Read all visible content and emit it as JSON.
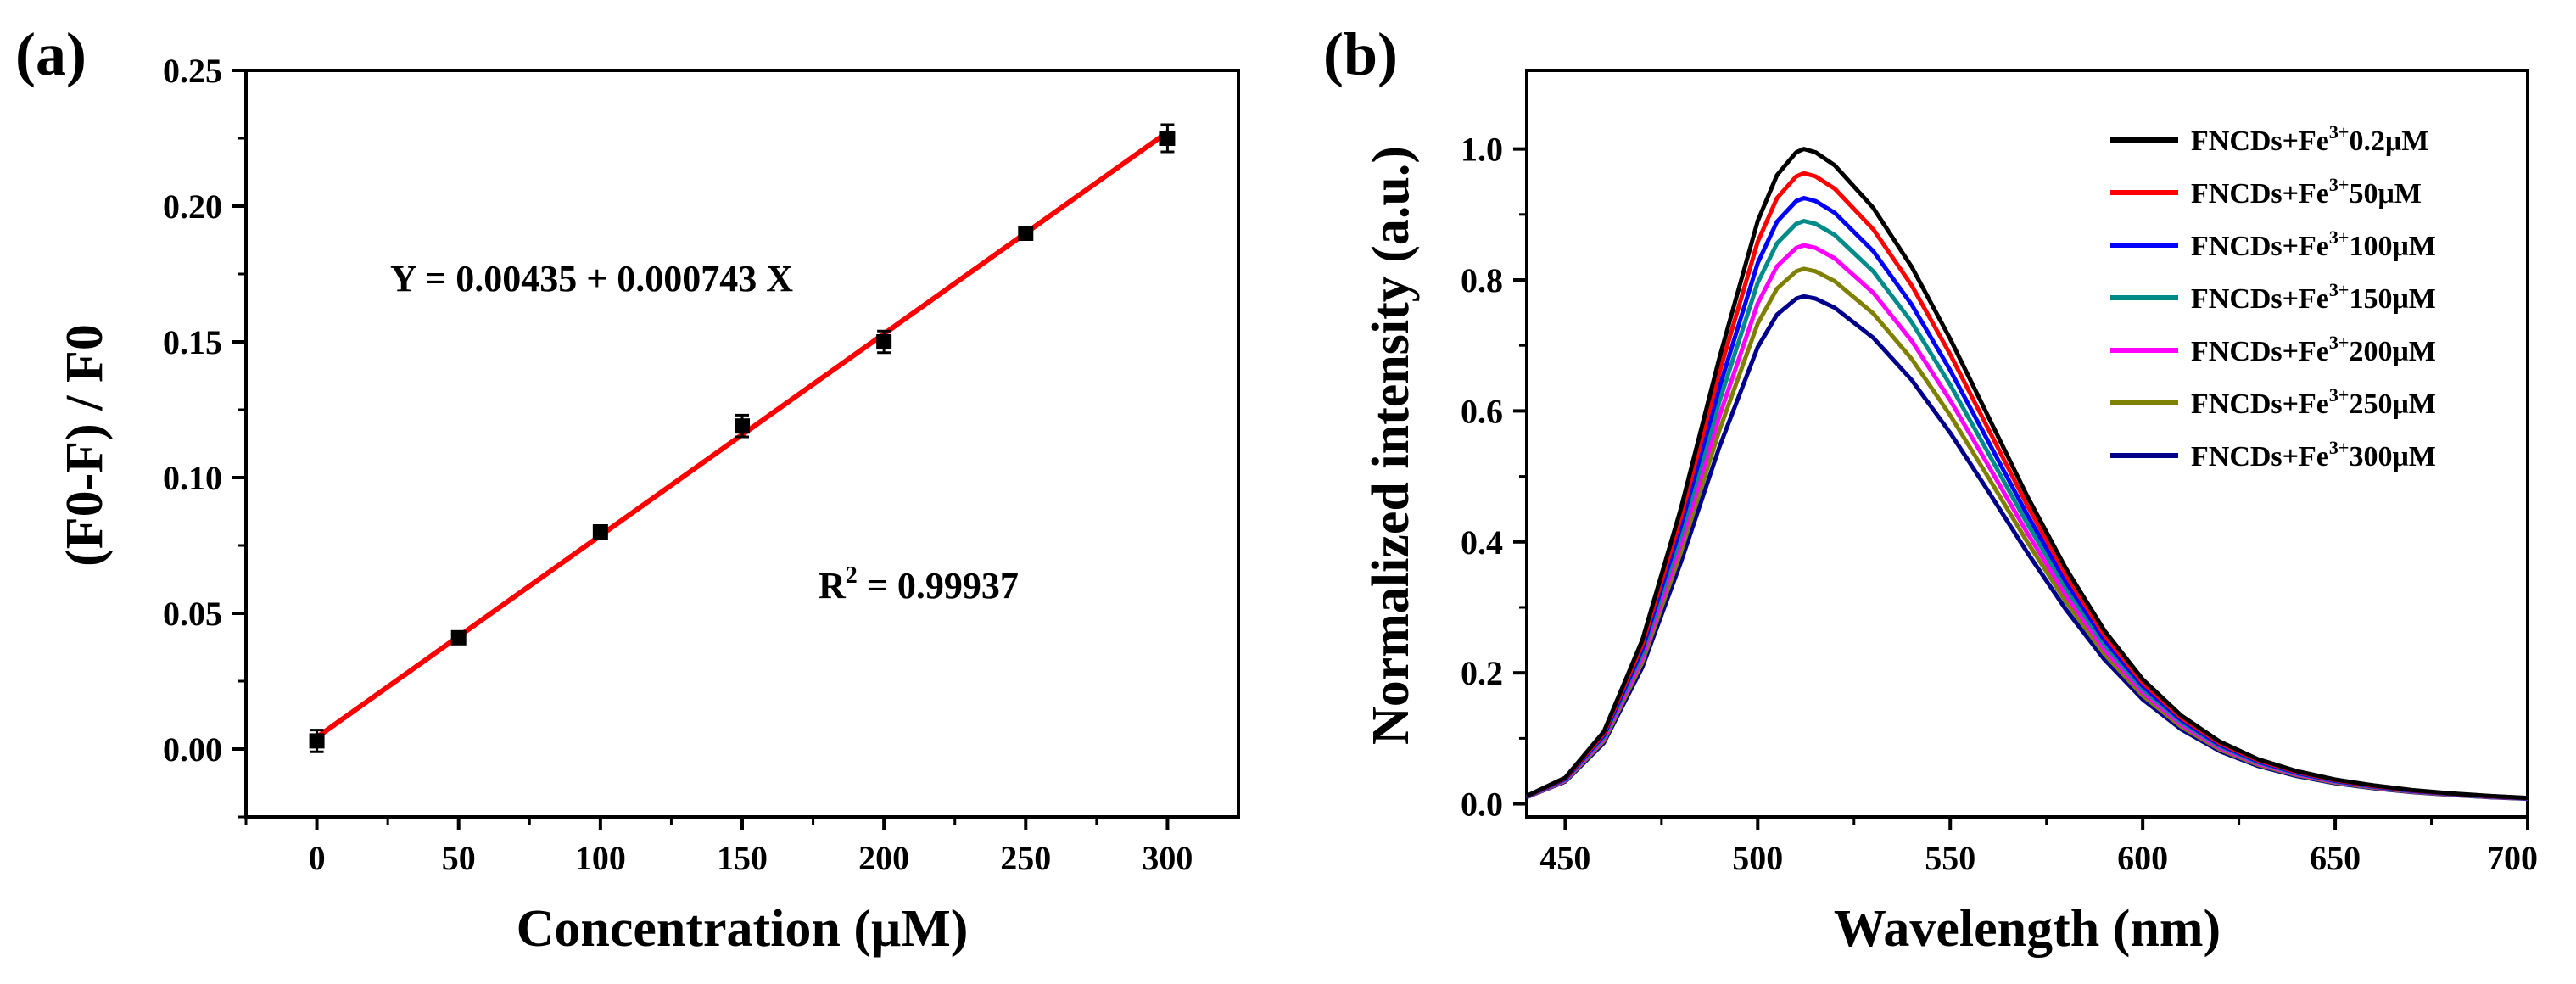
{
  "colors": {
    "axis": "#000000",
    "fit_line": "#ff0000",
    "marker": "#000000",
    "series": [
      "#000000",
      "#ff0000",
      "#0000ff",
      "#008b8b",
      "#ff00ff",
      "#808000",
      "#00008b"
    ]
  },
  "chart_data": [
    {
      "panel_label": "(a)",
      "type": "scatter",
      "title": "",
      "xlabel": "Concentration (μM)",
      "ylabel": "(F0-F) / F0",
      "xlim": [
        -25,
        325
      ],
      "ylim": [
        -0.025,
        0.25
      ],
      "xticks": [
        "0",
        "50",
        "100",
        "150",
        "200",
        "250",
        "300"
      ],
      "yticks": [
        "0.00",
        "0.05",
        "0.10",
        "0.15",
        "0.20",
        "0.25"
      ],
      "points": [
        {
          "x": 0,
          "y": 0.003,
          "err": 0.004
        },
        {
          "x": 50,
          "y": 0.041,
          "err": 0.002
        },
        {
          "x": 100,
          "y": 0.08,
          "err": 0.002
        },
        {
          "x": 150,
          "y": 0.119,
          "err": 0.004
        },
        {
          "x": 200,
          "y": 0.15,
          "err": 0.004
        },
        {
          "x": 250,
          "y": 0.19,
          "err": 0.002
        },
        {
          "x": 300,
          "y": 0.225,
          "err": 0.005
        }
      ],
      "fit": {
        "intercept": 0.00435,
        "slope": 0.000743,
        "x_range": [
          0,
          300
        ]
      },
      "annotations": {
        "equation": "Y = 0.00435 + 0.000743 X",
        "r2_prefix": "R",
        "r2_sup": "2",
        "r2_value": " = 0.99937"
      }
    },
    {
      "panel_label": "(b)",
      "type": "line",
      "title": "",
      "xlabel": "Wavelength (nm)",
      "ylabel": "Normalized intensity (a.u.)",
      "xlim": [
        440,
        700
      ],
      "ylim": [
        -0.02,
        1.12
      ],
      "xticks": [
        "450",
        "500",
        "550",
        "600",
        "650",
        "700"
      ],
      "yticks": [
        "0.0",
        "0.2",
        "0.4",
        "0.6",
        "0.8",
        "1.0"
      ],
      "legend_position": "top-right",
      "series": [
        {
          "name": "FNCDs+Fe3+0.2μM",
          "legend_prefix": "FNCDs+Fe",
          "legend_sup": "3+",
          "legend_suffix": "0.2μM",
          "peak": 1.0
        },
        {
          "name": "FNCDs+Fe3+50μM",
          "legend_prefix": "FNCDs+Fe",
          "legend_sup": "3+",
          "legend_suffix": "50μM",
          "peak": 0.963
        },
        {
          "name": "FNCDs+Fe3+100μM",
          "legend_prefix": "FNCDs+Fe",
          "legend_sup": "3+",
          "legend_suffix": "100μM",
          "peak": 0.925
        },
        {
          "name": "FNCDs+Fe3+150μM",
          "legend_prefix": "FNCDs+Fe",
          "legend_sup": "3+",
          "legend_suffix": "150μM",
          "peak": 0.89
        },
        {
          "name": "FNCDs+Fe3+200μM",
          "legend_prefix": "FNCDs+Fe",
          "legend_sup": "3+",
          "legend_suffix": "200μM",
          "peak": 0.853
        },
        {
          "name": "FNCDs+Fe3+250μM",
          "legend_prefix": "FNCDs+Fe",
          "legend_sup": "3+",
          "legend_suffix": "250μM",
          "peak": 0.817
        },
        {
          "name": "FNCDs+Fe3+300μM",
          "legend_prefix": "FNCDs+Fe",
          "legend_sup": "3+",
          "legend_suffix": "300μM",
          "peak": 0.775
        }
      ],
      "spectrum_shape": {
        "x": [
          440,
          450,
          460,
          470,
          480,
          490,
          500,
          505,
          510,
          512,
          515,
          520,
          530,
          540,
          550,
          560,
          570,
          580,
          590,
          600,
          610,
          620,
          630,
          640,
          650,
          660,
          670,
          680,
          690,
          700
        ],
        "y": [
          0.012,
          0.04,
          0.11,
          0.25,
          0.45,
          0.68,
          0.89,
          0.96,
          0.995,
          1.0,
          0.995,
          0.975,
          0.91,
          0.82,
          0.71,
          0.59,
          0.47,
          0.36,
          0.265,
          0.19,
          0.135,
          0.095,
          0.068,
          0.05,
          0.037,
          0.028,
          0.021,
          0.016,
          0.012,
          0.009
        ]
      }
    }
  ]
}
